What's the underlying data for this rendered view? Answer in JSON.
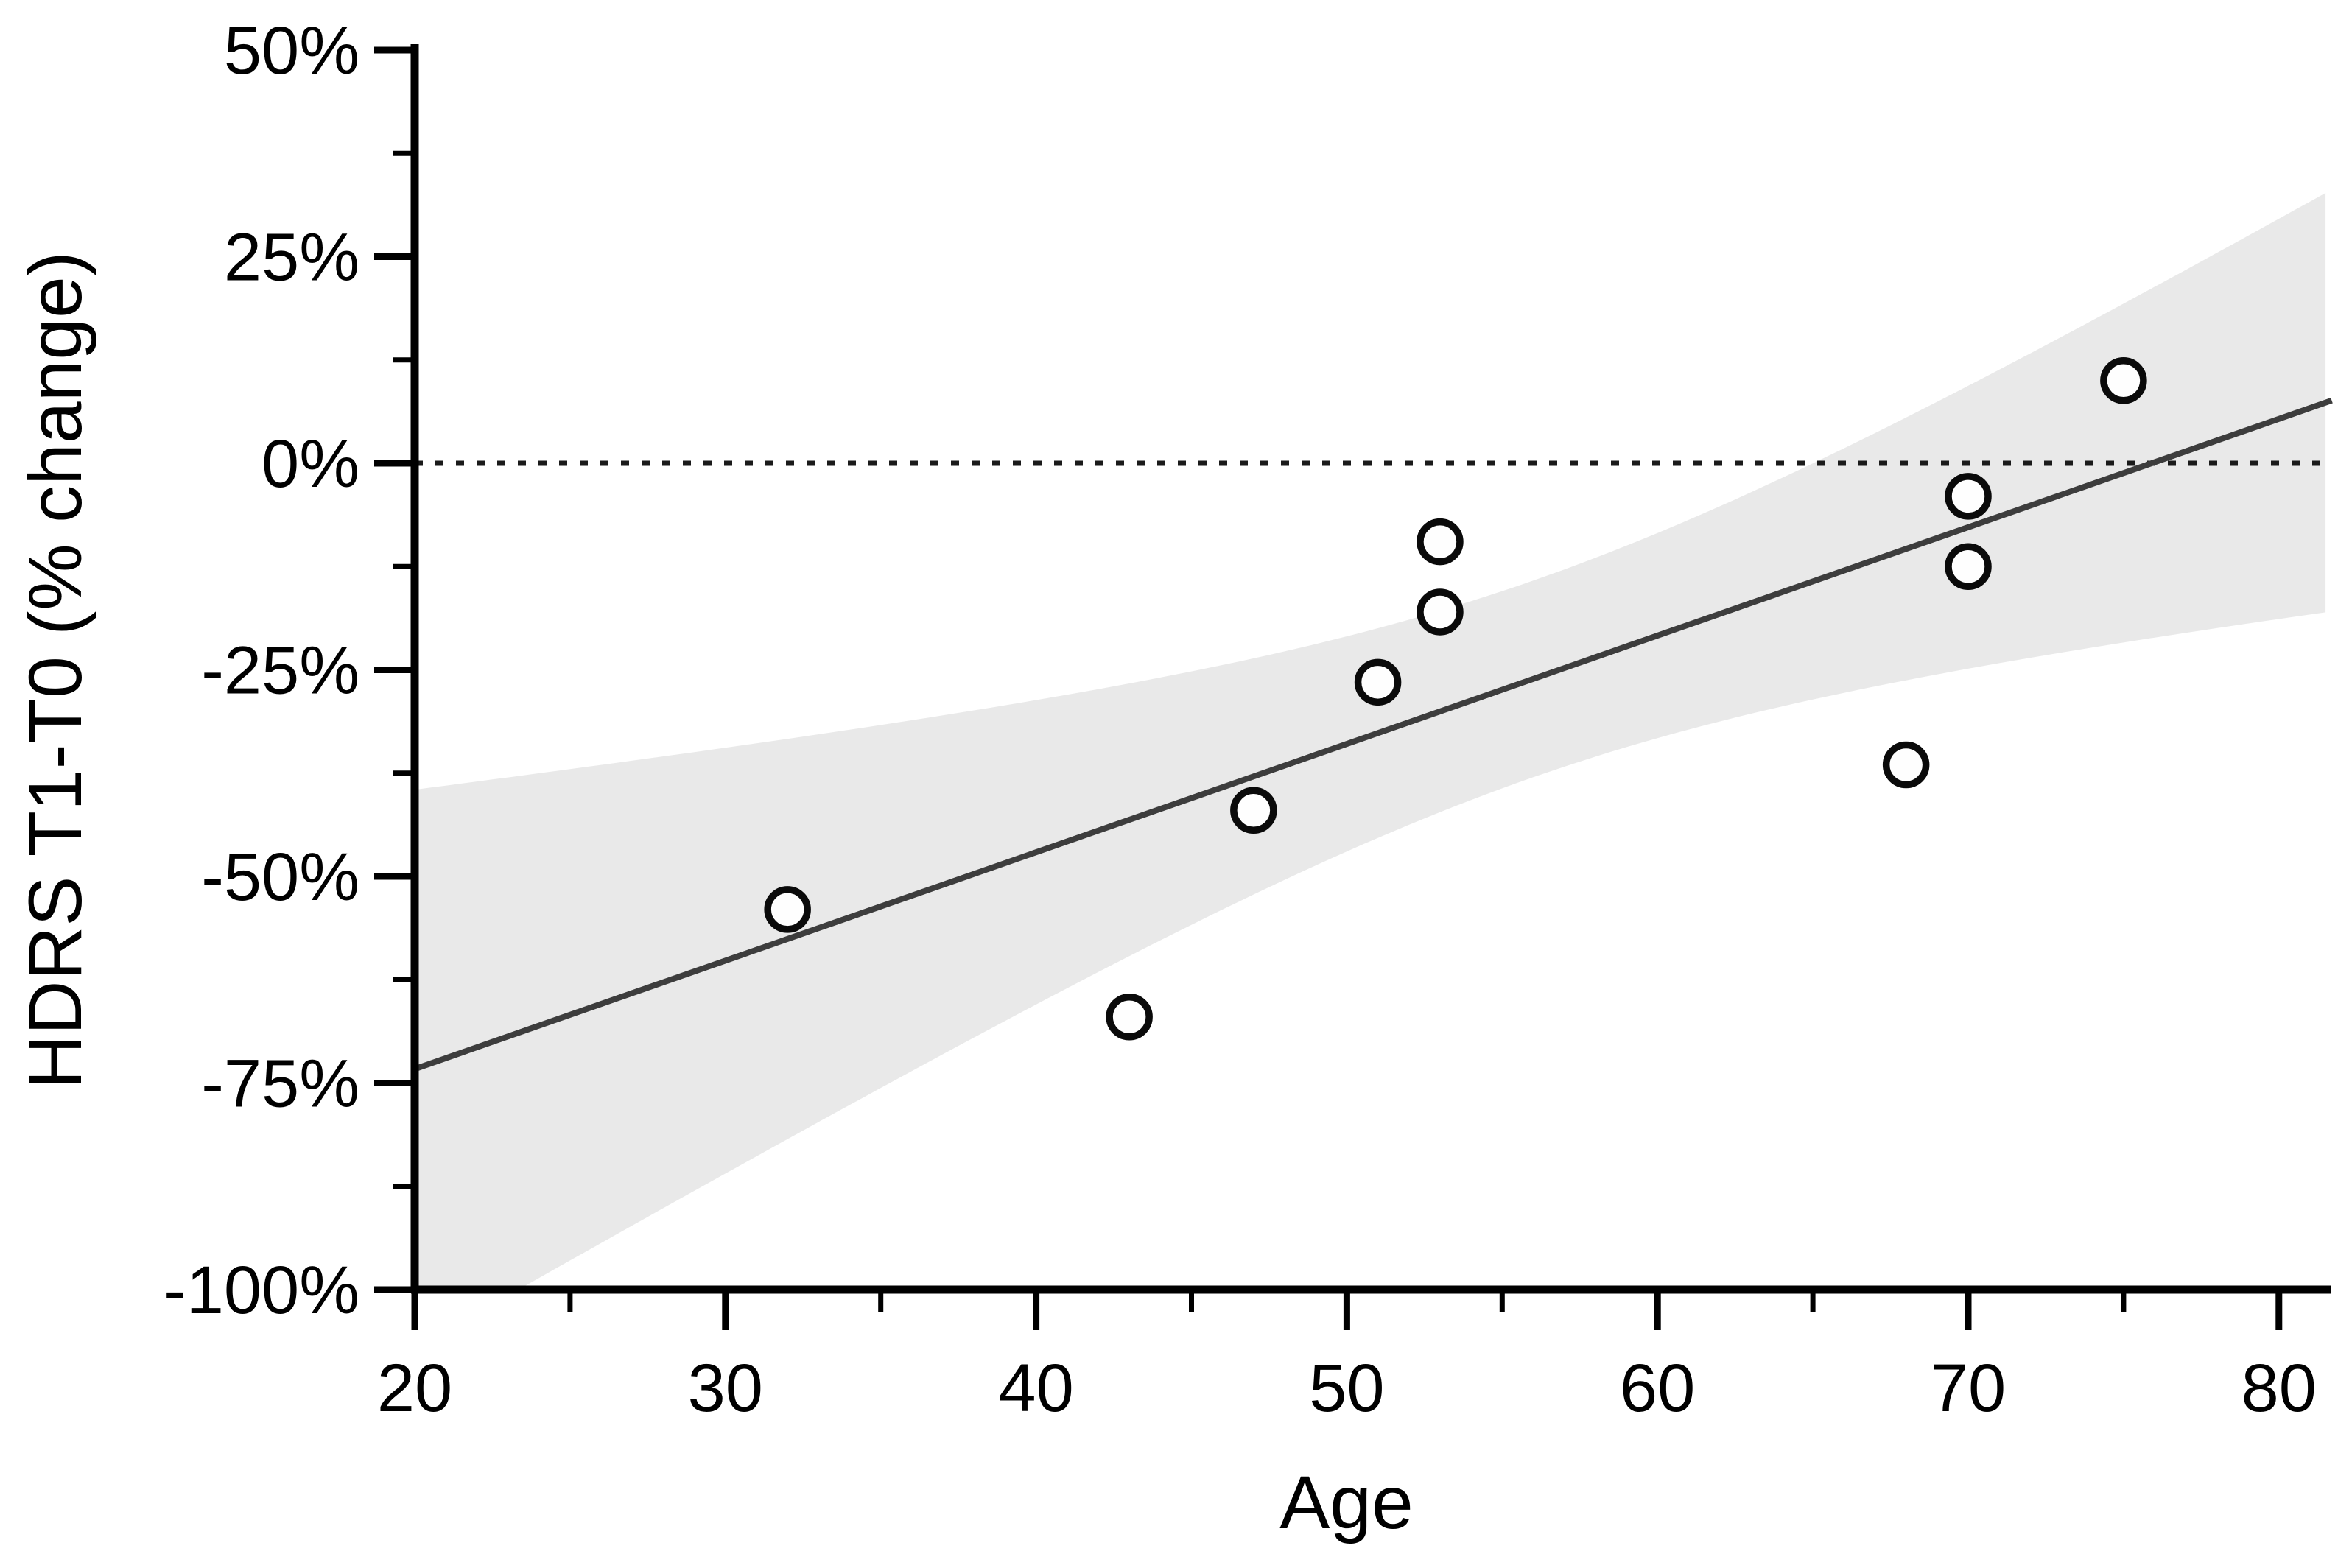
{
  "figure": {
    "background": "#ffffff",
    "description": "Scatter plot of HDRS percent change from T0 to T1 versus patient age, with linear regression line, gray confidence band and dotted zero reference line"
  },
  "chart_data": {
    "type": "scatter",
    "title": "",
    "xlabel": "Age",
    "ylabel": "HDRS T1-T0 (% change)",
    "xlim": [
      20,
      81.7
    ],
    "ylim": [
      -100,
      50
    ],
    "grid": false,
    "legend": null,
    "x_ticks": [
      {
        "value": 20,
        "label": "20"
      },
      {
        "value": 30,
        "label": "30"
      },
      {
        "value": 40,
        "label": "40"
      },
      {
        "value": 50,
        "label": "50"
      },
      {
        "value": 60,
        "label": "60"
      },
      {
        "value": 70,
        "label": "70"
      },
      {
        "value": 80,
        "label": "80"
      }
    ],
    "x_minor_ticks": [
      25,
      35,
      45,
      55,
      65,
      75
    ],
    "y_ticks": [
      {
        "value": 50,
        "label": "50%"
      },
      {
        "value": 25,
        "label": "25%"
      },
      {
        "value": 0,
        "label": "0%"
      },
      {
        "value": -25,
        "label": "-25%"
      },
      {
        "value": -50,
        "label": "-50%"
      },
      {
        "value": -75,
        "label": "-75%"
      },
      {
        "value": -100,
        "label": "-100%"
      }
    ],
    "y_minor_ticks": [
      37.5,
      12.5,
      -12.5,
      -37.5,
      -62.5,
      -87.5
    ],
    "reference_line": {
      "y": 0,
      "style": "dotted"
    },
    "points": [
      {
        "age": 32,
        "change_pct": -54
      },
      {
        "age": 43,
        "change_pct": -67
      },
      {
        "age": 47,
        "change_pct": -42
      },
      {
        "age": 51,
        "change_pct": -26.5
      },
      {
        "age": 53,
        "change_pct": -9.5
      },
      {
        "age": 53,
        "change_pct": -18
      },
      {
        "age": 68,
        "change_pct": -36.5
      },
      {
        "age": 70,
        "change_pct": -4
      },
      {
        "age": 70,
        "change_pct": -12.5
      },
      {
        "age": 75,
        "change_pct": 10
      }
    ],
    "regression_line": {
      "start": {
        "age": 20,
        "change_pct": -73.3
      },
      "end": {
        "age": 81.7,
        "change_pct": 7.6
      },
      "zero_crossing_age": 76
    },
    "confidence_band": {
      "min_half_width_pct": 11.9,
      "narrowest_age": 56,
      "spread_age": 13.54,
      "upper_at_age20_pct": -39.5,
      "upper_at_age80_pct": 29,
      "lower_at_age80_pct": -18,
      "lower_clipped_below_pct": -100
    },
    "colors": {
      "background": "#ffffff",
      "band_fill": "#e9e9e9",
      "regression_line": "#3d3d3d",
      "reference_line": "#1a1a1a",
      "axis": "#000000",
      "point_stroke": "#0a0a0a",
      "point_fill": "#fefefe",
      "text": "#000000"
    }
  }
}
